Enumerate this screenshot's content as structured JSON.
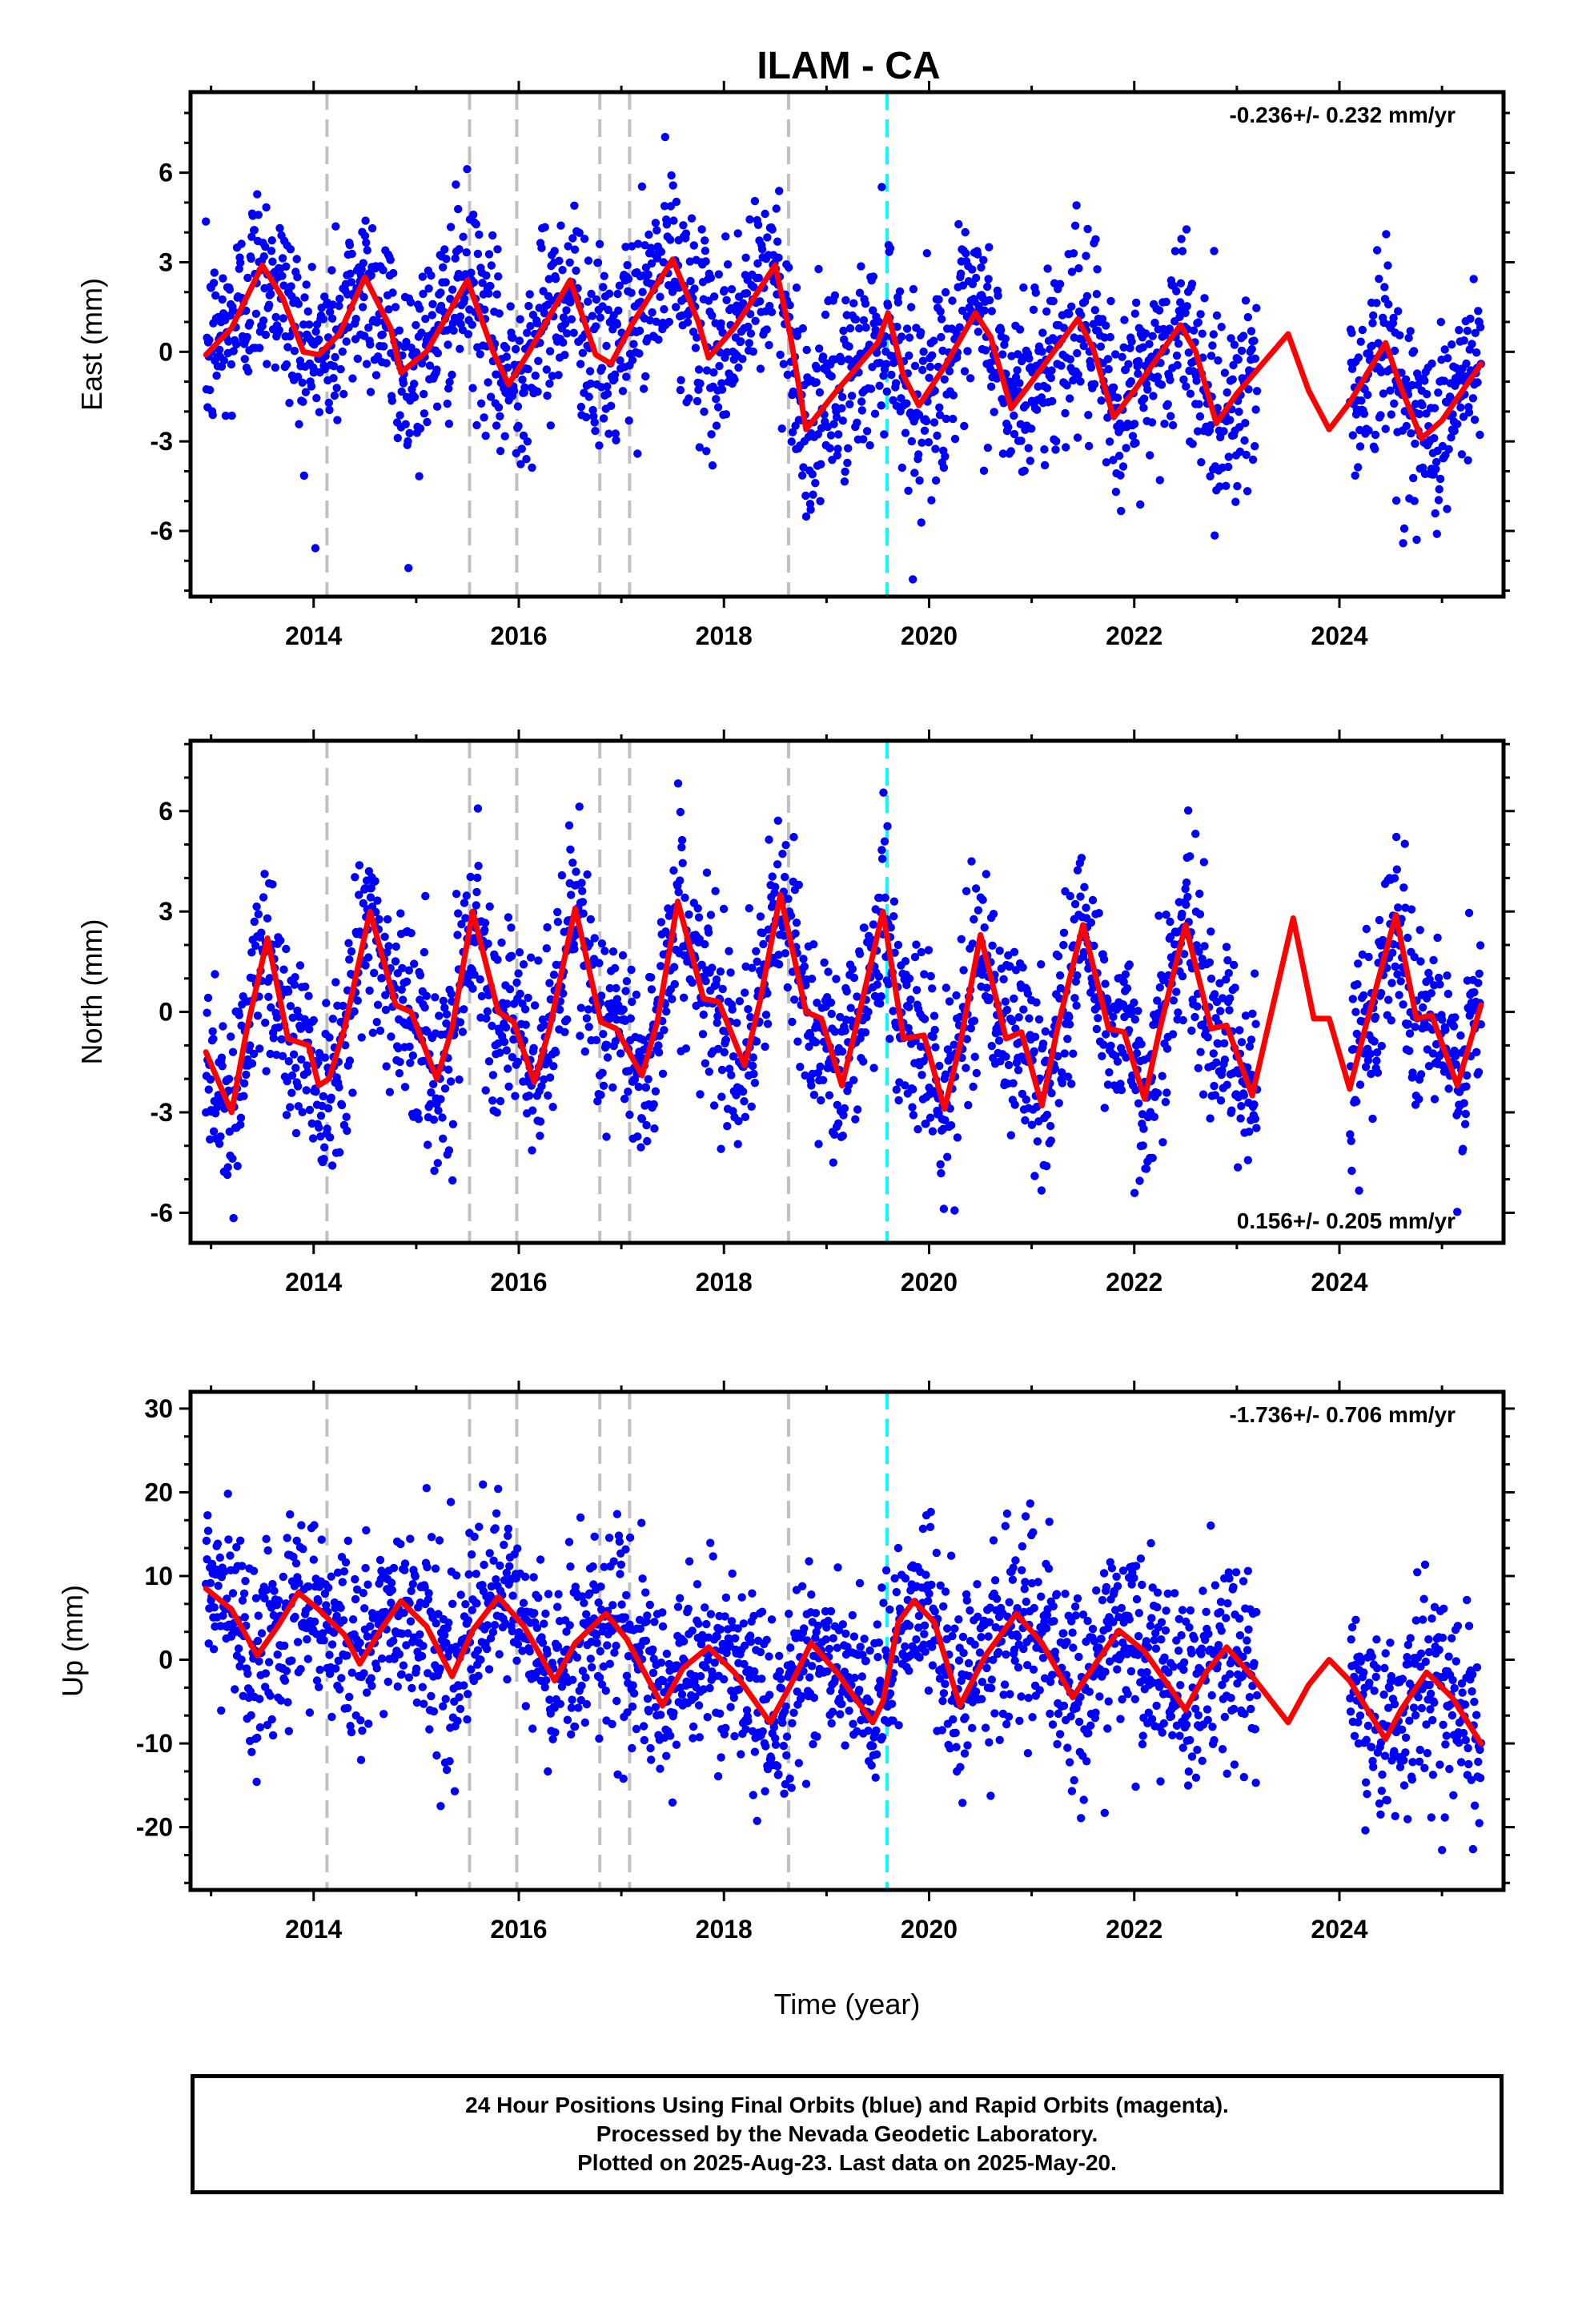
{
  "chart_data": {
    "type": "scatter",
    "title": "ILAM - CA",
    "xlabel": "Time (year)",
    "x_ticks": [
      "2014",
      "2016",
      "2018",
      "2020",
      "2022",
      "2024"
    ],
    "xlim": [
      2012.8,
      2025.6
    ],
    "equipment_changes": [
      2014.13,
      2015.52,
      2015.98,
      2016.79,
      2017.08,
      2018.63
    ],
    "other_event": 2019.59,
    "colors": {
      "points": "#0000ff",
      "model": "#ff0000",
      "equipment_line": "#c0c0c0",
      "event_line": "#00ffff"
    },
    "panels": [
      {
        "id": "east",
        "ylabel": "East (mm)",
        "ylim": [
          -8.2,
          8.7
        ],
        "yticks": [
          "6",
          "3",
          "0",
          "-3",
          "-6"
        ],
        "ytick_values": [
          6,
          3,
          0,
          -3,
          -6
        ],
        "rate": "-0.236+/- 0.232 mm/yr",
        "rate_position": "top-right",
        "model": [
          [
            2012.95,
            -0.1
          ],
          [
            2013.2,
            0.8
          ],
          [
            2013.5,
            2.9
          ],
          [
            2013.7,
            1.8
          ],
          [
            2013.9,
            0.0
          ],
          [
            2014.05,
            -0.1
          ],
          [
            2014.25,
            0.6
          ],
          [
            2014.5,
            2.5
          ],
          [
            2014.75,
            0.8
          ],
          [
            2014.85,
            -0.7
          ],
          [
            2015.1,
            0.0
          ],
          [
            2015.5,
            2.4
          ],
          [
            2015.75,
            0.0
          ],
          [
            2015.9,
            -1.1
          ],
          [
            2016.1,
            0.0
          ],
          [
            2016.5,
            2.4
          ],
          [
            2016.75,
            -0.1
          ],
          [
            2016.9,
            -0.4
          ],
          [
            2017.1,
            0.9
          ],
          [
            2017.5,
            3.1
          ],
          [
            2017.75,
            1.0
          ],
          [
            2017.85,
            -0.2
          ],
          [
            2018.1,
            0.8
          ],
          [
            2018.5,
            2.9
          ],
          [
            2018.65,
            0.5
          ],
          [
            2018.8,
            -2.6
          ],
          [
            2019.1,
            -1.3
          ],
          [
            2019.5,
            0.3
          ],
          [
            2019.6,
            1.3
          ],
          [
            2019.75,
            -0.8
          ],
          [
            2019.9,
            -1.8
          ],
          [
            2020.15,
            -0.5
          ],
          [
            2020.45,
            1.3
          ],
          [
            2020.6,
            0.5
          ],
          [
            2020.8,
            -1.9
          ],
          [
            2021.0,
            -1.0
          ],
          [
            2021.45,
            1.1
          ],
          [
            2021.6,
            0.1
          ],
          [
            2021.8,
            -2.2
          ],
          [
            2022.0,
            -1.3
          ],
          [
            2022.45,
            0.9
          ],
          [
            2022.6,
            0.0
          ],
          [
            2022.8,
            -2.4
          ],
          [
            2023.0,
            -1.4
          ],
          [
            2023.5,
            0.6
          ],
          [
            2023.7,
            -1.3
          ],
          [
            2023.9,
            -2.6
          ],
          [
            2024.1,
            -1.7
          ],
          [
            2024.45,
            0.3
          ],
          [
            2024.6,
            -1.2
          ],
          [
            2024.8,
            -2.9
          ],
          [
            2025.0,
            -2.3
          ],
          [
            2025.38,
            -0.4
          ]
        ]
      },
      {
        "id": "north",
        "ylabel": "North (mm)",
        "ylim": [
          -6.9,
          8.1
        ],
        "yticks": [
          "6",
          "3",
          "0",
          "-3",
          "-6"
        ],
        "ytick_values": [
          6,
          3,
          0,
          -3,
          -6
        ],
        "rate": "0.156+/- 0.205 mm/yr",
        "rate_position": "bottom-right",
        "model": [
          [
            2012.95,
            -1.2
          ],
          [
            2013.2,
            -3.0
          ],
          [
            2013.35,
            -0.5
          ],
          [
            2013.55,
            2.2
          ],
          [
            2013.75,
            -0.8
          ],
          [
            2013.95,
            -1.0
          ],
          [
            2014.05,
            -2.2
          ],
          [
            2014.15,
            -2.0
          ],
          [
            2014.3,
            -0.5
          ],
          [
            2014.55,
            3.0
          ],
          [
            2014.8,
            0.2
          ],
          [
            2014.95,
            0.0
          ],
          [
            2015.2,
            -2.0
          ],
          [
            2015.35,
            -0.5
          ],
          [
            2015.55,
            3.0
          ],
          [
            2015.8,
            0.0
          ],
          [
            2015.95,
            -0.3
          ],
          [
            2016.15,
            -2.1
          ],
          [
            2016.3,
            -0.5
          ],
          [
            2016.55,
            3.1
          ],
          [
            2016.8,
            -0.3
          ],
          [
            2016.95,
            -0.5
          ],
          [
            2017.2,
            -1.9
          ],
          [
            2017.35,
            -0.3
          ],
          [
            2017.55,
            3.3
          ],
          [
            2017.8,
            0.4
          ],
          [
            2017.95,
            0.3
          ],
          [
            2018.2,
            -1.6
          ],
          [
            2018.35,
            0.3
          ],
          [
            2018.55,
            3.5
          ],
          [
            2018.8,
            0.0
          ],
          [
            2018.95,
            -0.2
          ],
          [
            2019.15,
            -2.2
          ],
          [
            2019.3,
            -0.3
          ],
          [
            2019.55,
            3.0
          ],
          [
            2019.75,
            -0.8
          ],
          [
            2019.95,
            -0.7
          ],
          [
            2020.15,
            -2.9
          ],
          [
            2020.3,
            -1.0
          ],
          [
            2020.5,
            2.3
          ],
          [
            2020.75,
            -0.8
          ],
          [
            2020.9,
            -0.6
          ],
          [
            2021.1,
            -2.8
          ],
          [
            2021.25,
            -0.5
          ],
          [
            2021.5,
            2.6
          ],
          [
            2021.75,
            -0.5
          ],
          [
            2021.9,
            -0.6
          ],
          [
            2022.1,
            -2.6
          ],
          [
            2022.25,
            -0.5
          ],
          [
            2022.5,
            2.6
          ],
          [
            2022.75,
            -0.5
          ],
          [
            2022.9,
            -0.4
          ],
          [
            2023.15,
            -2.5
          ],
          [
            2023.3,
            -0.5
          ],
          [
            2023.55,
            2.8
          ],
          [
            2023.75,
            -0.2
          ],
          [
            2023.9,
            -0.2
          ],
          [
            2024.1,
            -2.3
          ],
          [
            2024.25,
            -0.5
          ],
          [
            2024.55,
            2.9
          ],
          [
            2024.75,
            -0.2
          ],
          [
            2024.9,
            -0.1
          ],
          [
            2025.15,
            -2.2
          ],
          [
            2025.38,
            0.2
          ]
        ]
      },
      {
        "id": "up",
        "ylabel": "Up (mm)",
        "ylim": [
          -27.5,
          32
        ],
        "yticks": [
          "30",
          "20",
          "10",
          "0",
          "-10",
          "-20"
        ],
        "ytick_values": [
          30,
          20,
          10,
          0,
          -10,
          -20
        ],
        "rate": "-1.736+/- 0.706 mm/yr",
        "rate_position": "top-right",
        "model": [
          [
            2012.95,
            8.5
          ],
          [
            2013.2,
            6.0
          ],
          [
            2013.45,
            0.5
          ],
          [
            2013.65,
            4.0
          ],
          [
            2013.85,
            8.0
          ],
          [
            2014.05,
            6.0
          ],
          [
            2014.3,
            3.0
          ],
          [
            2014.45,
            -0.5
          ],
          [
            2014.65,
            3.5
          ],
          [
            2014.85,
            7.0
          ],
          [
            2015.1,
            4.0
          ],
          [
            2015.35,
            -2.0
          ],
          [
            2015.55,
            3.5
          ],
          [
            2015.8,
            7.5
          ],
          [
            2016.05,
            4.0
          ],
          [
            2016.35,
            -2.5
          ],
          [
            2016.55,
            2.0
          ],
          [
            2016.85,
            5.5
          ],
          [
            2017.05,
            2.5
          ],
          [
            2017.4,
            -5.5
          ],
          [
            2017.6,
            -1.0
          ],
          [
            2017.85,
            1.5
          ],
          [
            2018.1,
            -1.5
          ],
          [
            2018.45,
            -7.5
          ],
          [
            2018.65,
            -3.0
          ],
          [
            2018.85,
            2.0
          ],
          [
            2019.1,
            -1.5
          ],
          [
            2019.45,
            -7.5
          ],
          [
            2019.55,
            -5.0
          ],
          [
            2019.7,
            4.5
          ],
          [
            2019.85,
            7.0
          ],
          [
            2020.05,
            4.5
          ],
          [
            2020.3,
            -5.5
          ],
          [
            2020.55,
            0.5
          ],
          [
            2020.85,
            5.5
          ],
          [
            2021.1,
            2.0
          ],
          [
            2021.4,
            -4.5
          ],
          [
            2021.65,
            0.0
          ],
          [
            2021.85,
            3.5
          ],
          [
            2022.1,
            1.0
          ],
          [
            2022.5,
            -6.0
          ],
          [
            2022.7,
            -1.5
          ],
          [
            2022.9,
            1.5
          ],
          [
            2023.15,
            -2.0
          ],
          [
            2023.5,
            -7.5
          ],
          [
            2023.7,
            -3.0
          ],
          [
            2023.9,
            0.0
          ],
          [
            2024.1,
            -2.5
          ],
          [
            2024.45,
            -9.5
          ],
          [
            2024.6,
            -6.0
          ],
          [
            2024.85,
            -1.5
          ],
          [
            2025.1,
            -4.5
          ],
          [
            2025.38,
            -10.0
          ]
        ]
      }
    ]
  },
  "footer": {
    "line1": "24 Hour Positions Using Final Orbits (blue) and Rapid Orbits (magenta).",
    "line2": "Processed by the Nevada Geodetic Laboratory.",
    "line3": "Plotted on 2025-Aug-23. Last data on 2025-May-20."
  }
}
